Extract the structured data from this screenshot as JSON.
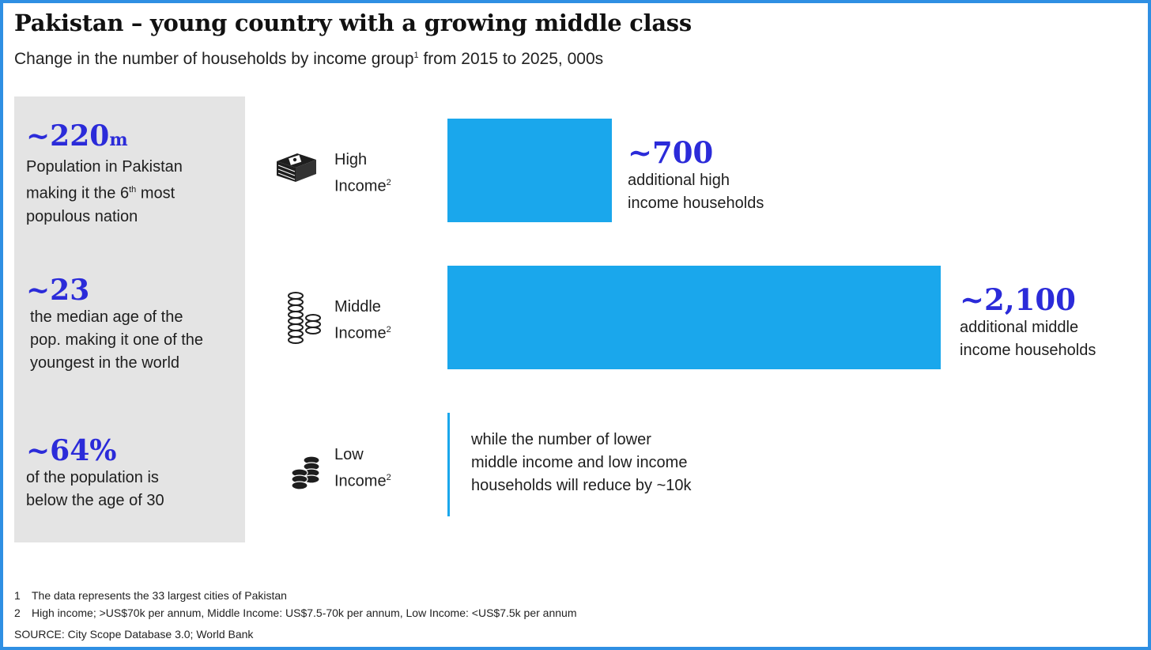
{
  "title": "Pakistan – young country with a growing middle class",
  "subtitle": "Change in the number of households by income group",
  "subtitle_sup": "1",
  "subtitle_tail": " from 2015 to 2025, 000s",
  "sidebar": {
    "stats": [
      {
        "value": "~220",
        "unit": "m",
        "desc_lines": [
          "Population in Pakistan",
          "making it the 6",
          "th",
          " most",
          "populous nation"
        ]
      },
      {
        "value": "~23",
        "unit": "",
        "desc_lines": [
          "the median age of the",
          "pop. making it one of the",
          "youngest in the world"
        ]
      },
      {
        "value": "~64%",
        "unit": "",
        "desc_lines": [
          "of the population is",
          "below the age of 30"
        ]
      }
    ]
  },
  "chart_data": {
    "type": "bar",
    "orientation": "horizontal",
    "title": "Pakistan – young country with a growing middle class",
    "subtitle": "Change in the number of households by income group from 2015 to 2025, 000s",
    "categories": [
      "High Income",
      "Middle Income",
      "Low Income"
    ],
    "category_labels": [
      {
        "line1": "High",
        "line2": "Income",
        "sup": "2"
      },
      {
        "line1": "Middle",
        "line2": "Income",
        "sup": "2"
      },
      {
        "line1": "Low",
        "line2": "Income",
        "sup": "2"
      }
    ],
    "values": [
      700,
      2100,
      -10
    ],
    "bar_color": "#1aa7ec",
    "callouts": [
      {
        "value": "~700",
        "desc_lines": [
          "additional high",
          "income households"
        ]
      },
      {
        "value": "~2,100",
        "desc_lines": [
          "additional middle",
          "income households"
        ]
      }
    ],
    "low_note_lines": [
      "while the number of lower",
      "middle income and low income",
      "households will reduce by ~10k"
    ],
    "grid": false,
    "legend": "none"
  },
  "icons": [
    "cash-stack-icon",
    "coin-stacks-icon",
    "coins-icon"
  ],
  "footnotes": [
    {
      "num": "1",
      "text": "The data represents the 33 largest cities of Pakistan"
    },
    {
      "num": "2",
      "text": "High income; >US$70k per annum, Middle Income: US$7.5-70k per annum, Low Income: <US$7.5k per annum"
    }
  ],
  "source": "SOURCE: City Scope Database 3.0; World Bank",
  "colors": {
    "accent": "#2b2bd9",
    "bar": "#1aa7ec",
    "frame": "#2f8fe3",
    "sidebar": "#e4e4e4"
  }
}
